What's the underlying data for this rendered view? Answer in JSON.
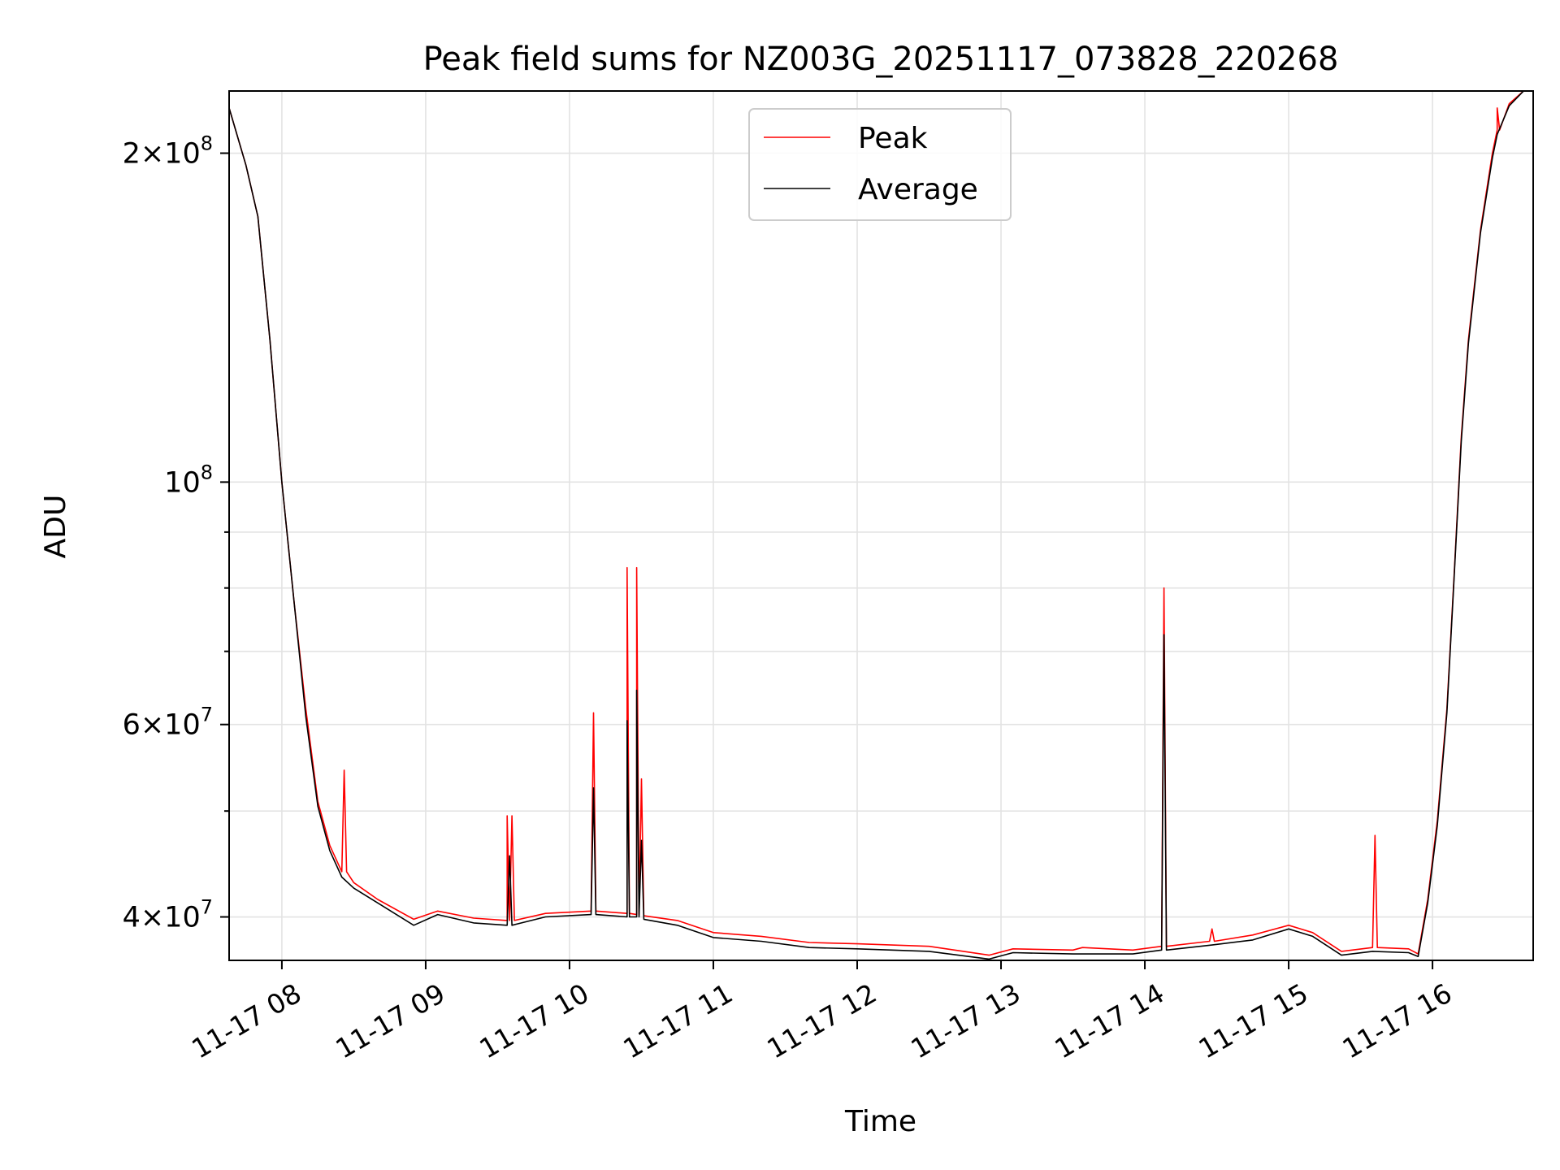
{
  "chart_data": {
    "type": "line",
    "title": "Peak field sums for NZ003G_20251117_073828_220268",
    "xlabel": "Time",
    "ylabel": "ADU",
    "y_scale": "log",
    "grid": true,
    "legend_placement": "upper-center",
    "xlim": [
      "2025-11-17 07:38",
      "2025-11-17 16:42"
    ],
    "ylim": [
      36500000,
      228000000
    ],
    "x_ticks": [
      {
        "value": "2025-11-17 08:00",
        "label": "11-17 08"
      },
      {
        "value": "2025-11-17 09:00",
        "label": "11-17 09"
      },
      {
        "value": "2025-11-17 10:00",
        "label": "11-17 10"
      },
      {
        "value": "2025-11-17 11:00",
        "label": "11-17 11"
      },
      {
        "value": "2025-11-17 12:00",
        "label": "11-17 12"
      },
      {
        "value": "2025-11-17 13:00",
        "label": "11-17 13"
      },
      {
        "value": "2025-11-17 14:00",
        "label": "11-17 14"
      },
      {
        "value": "2025-11-17 15:00",
        "label": "11-17 15"
      },
      {
        "value": "2025-11-17 16:00",
        "label": "11-17 16"
      }
    ],
    "y_major_ticks": [
      {
        "value": 40000000,
        "mantissa": "4",
        "exponent": "7"
      },
      {
        "value": 60000000,
        "mantissa": "6",
        "exponent": "7"
      },
      {
        "value": 100000000,
        "mantissa": "",
        "exponent": "8"
      },
      {
        "value": 200000000,
        "mantissa": "2",
        "exponent": "8"
      }
    ],
    "y_minor_ticks": [
      50000000,
      70000000,
      80000000,
      90000000
    ],
    "colors": {
      "peak": "#ff0000",
      "average": "#000000"
    },
    "series": [
      {
        "name": "Peak",
        "color": "#ff0000",
        "points": [
          [
            "2025-11-17 07:38",
            220000000
          ],
          [
            "2025-11-17 07:45",
            195000000
          ],
          [
            "2025-11-17 07:50",
            175000000
          ],
          [
            "2025-11-17 07:55",
            135000000
          ],
          [
            "2025-11-17 08:00",
            100000000
          ],
          [
            "2025-11-17 08:05",
            78000000
          ],
          [
            "2025-11-17 08:10",
            62000000
          ],
          [
            "2025-11-17 08:15",
            51000000
          ],
          [
            "2025-11-17 08:20",
            46500000
          ],
          [
            "2025-11-17 08:25",
            44000000
          ],
          [
            "2025-11-17 08:26",
            54500000
          ],
          [
            "2025-11-17 08:27",
            44000000
          ],
          [
            "2025-11-17 08:30",
            43000000
          ],
          [
            "2025-11-17 08:40",
            41500000
          ],
          [
            "2025-11-17 08:55",
            39800000
          ],
          [
            "2025-11-17 09:05",
            40500000
          ],
          [
            "2025-11-17 09:20",
            39900000
          ],
          [
            "2025-11-17 09:34",
            39700000
          ],
          [
            "2025-11-17 09:34",
            49500000
          ],
          [
            "2025-11-17 09:35",
            39700000
          ],
          [
            "2025-11-17 09:36",
            49500000
          ],
          [
            "2025-11-17 09:37",
            39700000
          ],
          [
            "2025-11-17 09:50",
            40300000
          ],
          [
            "2025-11-17 10:09",
            40500000
          ],
          [
            "2025-11-17 10:10",
            61500000
          ],
          [
            "2025-11-17 10:11",
            40500000
          ],
          [
            "2025-11-17 10:24",
            40300000
          ],
          [
            "2025-11-17 10:24",
            83500000
          ],
          [
            "2025-11-17 10:25",
            40300000
          ],
          [
            "2025-11-17 10:28",
            40200000
          ],
          [
            "2025-11-17 10:28",
            83500000
          ],
          [
            "2025-11-17 10:29",
            40200000
          ],
          [
            "2025-11-17 10:30",
            53500000
          ],
          [
            "2025-11-17 10:31",
            40100000
          ],
          [
            "2025-11-17 10:45",
            39700000
          ],
          [
            "2025-11-17 11:00",
            38700000
          ],
          [
            "2025-11-17 11:20",
            38400000
          ],
          [
            "2025-11-17 11:40",
            37900000
          ],
          [
            "2025-11-17 12:00",
            37800000
          ],
          [
            "2025-11-17 12:30",
            37600000
          ],
          [
            "2025-11-17 12:55",
            36900000
          ],
          [
            "2025-11-17 13:05",
            37400000
          ],
          [
            "2025-11-17 13:30",
            37300000
          ],
          [
            "2025-11-17 13:34",
            37500000
          ],
          [
            "2025-11-17 13:55",
            37300000
          ],
          [
            "2025-11-17 14:07",
            37600000
          ],
          [
            "2025-11-17 14:08",
            80000000
          ],
          [
            "2025-11-17 14:09",
            37600000
          ],
          [
            "2025-11-17 14:27",
            38000000
          ],
          [
            "2025-11-17 14:28",
            39000000
          ],
          [
            "2025-11-17 14:29",
            38000000
          ],
          [
            "2025-11-17 14:45",
            38500000
          ],
          [
            "2025-11-17 15:00",
            39300000
          ],
          [
            "2025-11-17 15:10",
            38700000
          ],
          [
            "2025-11-17 15:22",
            37200000
          ],
          [
            "2025-11-17 15:35",
            37500000
          ],
          [
            "2025-11-17 15:36",
            47500000
          ],
          [
            "2025-11-17 15:37",
            37500000
          ],
          [
            "2025-11-17 15:50",
            37400000
          ],
          [
            "2025-11-17 15:54",
            37000000
          ],
          [
            "2025-11-17 15:58",
            41500000
          ],
          [
            "2025-11-17 16:02",
            49000000
          ],
          [
            "2025-11-17 16:06",
            62000000
          ],
          [
            "2025-11-17 16:09",
            82000000
          ],
          [
            "2025-11-17 16:12",
            110000000
          ],
          [
            "2025-11-17 16:15",
            135000000
          ],
          [
            "2025-11-17 16:20",
            170000000
          ],
          [
            "2025-11-17 16:25",
            200000000
          ],
          [
            "2025-11-17 16:27",
            210000000
          ],
          [
            "2025-11-17 16:27",
            220000000
          ],
          [
            "2025-11-17 16:28",
            210000000
          ],
          [
            "2025-11-17 16:32",
            222000000
          ],
          [
            "2025-11-17 16:38",
            228000000
          ],
          [
            "2025-11-17 16:42",
            228000000
          ]
        ]
      },
      {
        "name": "Average",
        "color": "#000000",
        "points": [
          [
            "2025-11-17 07:38",
            220000000
          ],
          [
            "2025-11-17 07:45",
            195000000
          ],
          [
            "2025-11-17 07:50",
            175000000
          ],
          [
            "2025-11-17 07:55",
            135000000
          ],
          [
            "2025-11-17 08:00",
            100000000
          ],
          [
            "2025-11-17 08:05",
            78000000
          ],
          [
            "2025-11-17 08:10",
            61000000
          ],
          [
            "2025-11-17 08:15",
            50500000
          ],
          [
            "2025-11-17 08:20",
            46000000
          ],
          [
            "2025-11-17 08:25",
            43500000
          ],
          [
            "2025-11-17 08:30",
            42500000
          ],
          [
            "2025-11-17 08:40",
            41200000
          ],
          [
            "2025-11-17 08:55",
            39300000
          ],
          [
            "2025-11-17 09:05",
            40200000
          ],
          [
            "2025-11-17 09:20",
            39500000
          ],
          [
            "2025-11-17 09:34",
            39300000
          ],
          [
            "2025-11-17 09:35",
            45500000
          ],
          [
            "2025-11-17 09:36",
            39300000
          ],
          [
            "2025-11-17 09:50",
            40000000
          ],
          [
            "2025-11-17 10:09",
            40200000
          ],
          [
            "2025-11-17 10:10",
            52500000
          ],
          [
            "2025-11-17 10:11",
            40200000
          ],
          [
            "2025-11-17 10:24",
            40000000
          ],
          [
            "2025-11-17 10:24",
            60500000
          ],
          [
            "2025-11-17 10:25",
            40000000
          ],
          [
            "2025-11-17 10:28",
            40000000
          ],
          [
            "2025-11-17 10:28",
            64500000
          ],
          [
            "2025-11-17 10:29",
            40000000
          ],
          [
            "2025-11-17 10:30",
            47000000
          ],
          [
            "2025-11-17 10:31",
            39800000
          ],
          [
            "2025-11-17 10:45",
            39300000
          ],
          [
            "2025-11-17 11:00",
            38300000
          ],
          [
            "2025-11-17 11:20",
            38000000
          ],
          [
            "2025-11-17 11:40",
            37500000
          ],
          [
            "2025-11-17 12:00",
            37400000
          ],
          [
            "2025-11-17 12:30",
            37200000
          ],
          [
            "2025-11-17 12:55",
            36600000
          ],
          [
            "2025-11-17 13:05",
            37100000
          ],
          [
            "2025-11-17 13:30",
            37000000
          ],
          [
            "2025-11-17 13:55",
            37000000
          ],
          [
            "2025-11-17 14:07",
            37300000
          ],
          [
            "2025-11-17 14:08",
            72500000
          ],
          [
            "2025-11-17 14:09",
            37300000
          ],
          [
            "2025-11-17 14:28",
            37700000
          ],
          [
            "2025-11-17 14:45",
            38100000
          ],
          [
            "2025-11-17 15:00",
            39000000
          ],
          [
            "2025-11-17 15:10",
            38400000
          ],
          [
            "2025-11-17 15:22",
            36900000
          ],
          [
            "2025-11-17 15:35",
            37200000
          ],
          [
            "2025-11-17 15:50",
            37100000
          ],
          [
            "2025-11-17 15:54",
            36800000
          ],
          [
            "2025-11-17 15:58",
            41200000
          ],
          [
            "2025-11-17 16:02",
            48500000
          ],
          [
            "2025-11-17 16:06",
            61500000
          ],
          [
            "2025-11-17 16:09",
            81500000
          ],
          [
            "2025-11-17 16:12",
            109000000
          ],
          [
            "2025-11-17 16:15",
            134000000
          ],
          [
            "2025-11-17 16:20",
            169000000
          ],
          [
            "2025-11-17 16:25",
            198000000
          ],
          [
            "2025-11-17 16:27",
            208000000
          ],
          [
            "2025-11-17 16:32",
            221000000
          ],
          [
            "2025-11-17 16:38",
            228000000
          ],
          [
            "2025-11-17 16:42",
            228000000
          ]
        ]
      }
    ]
  }
}
